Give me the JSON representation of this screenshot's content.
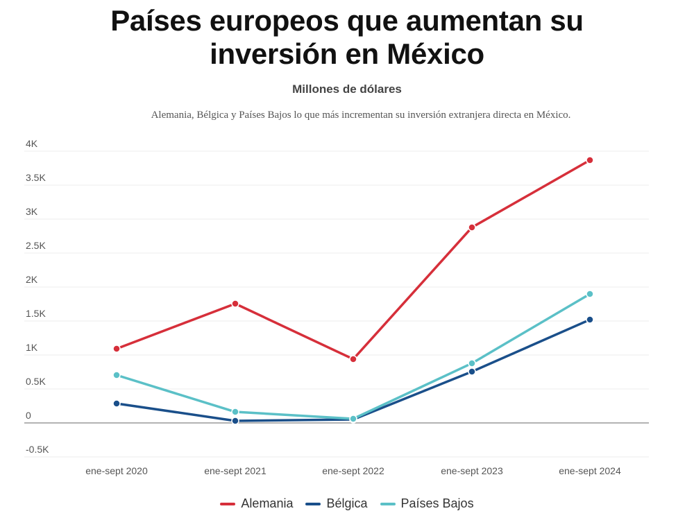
{
  "title_line1": "Países europeos que aumentan su",
  "title_line2": "inversión en México",
  "subtitle": "Millones de dólares",
  "description": "Alemania, Bélgica y Países Bajos lo que más incrementan su inversión extranjera directa en México.",
  "chart_data": {
    "type": "line",
    "title": "Países europeos que aumentan su inversión en México",
    "ylabel": "Millones de dólares",
    "xlabel": "",
    "categories": [
      "ene-sept 2020",
      "ene-sept 2021",
      "ene-sept 2022",
      "ene-sept 2023",
      "ene-sept 2024"
    ],
    "ylim": [
      -500,
      4000
    ],
    "yticks": [
      -500,
      0,
      500,
      1000,
      1500,
      2000,
      2500,
      3000,
      3500,
      4000
    ],
    "ytick_labels": [
      "-0.5K",
      "0",
      "0.5K",
      "1K",
      "1.5K",
      "2K",
      "2.5K",
      "3K",
      "3.5K",
      "4K"
    ],
    "grid": true,
    "legend_position": "bottom",
    "series": [
      {
        "name": "Alemania",
        "color": "#d62f3a",
        "values": [
          1092,
          1755,
          939,
          2878,
          3867
        ]
      },
      {
        "name": "Bélgica",
        "color": "#1a4f8a",
        "values": [
          286,
          31,
          51,
          755,
          1520
        ]
      },
      {
        "name": "Países Bajos",
        "color": "#5bc0c7",
        "values": [
          704,
          163,
          61,
          878,
          1898
        ]
      }
    ]
  }
}
